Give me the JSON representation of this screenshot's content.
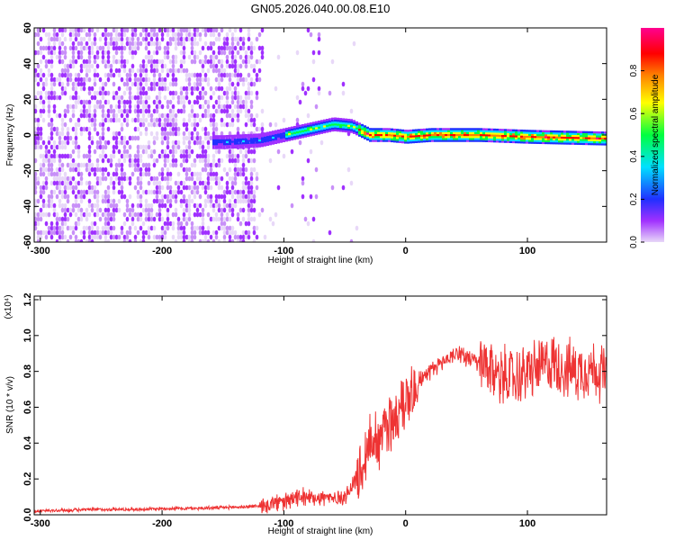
{
  "title": "GN05.2026.040.00.08.E10",
  "chart_data": [
    {
      "type": "heatmap",
      "xlabel": "Height of straight line (km)",
      "ylabel": "Frequency (Hz)",
      "xlim": [
        -305,
        165
      ],
      "ylim": [
        -60,
        60
      ],
      "xticks": [
        -300,
        -200,
        -100,
        0,
        100
      ],
      "yticks": [
        -60,
        -40,
        -20,
        0,
        20,
        40,
        60
      ],
      "colorbar": {
        "label": "Normalized spectral amplitude",
        "range": [
          0,
          1
        ],
        "ticks": [
          "0.0",
          "0.2",
          "0.4",
          "0.6",
          "0.8"
        ],
        "tick_values": [
          0,
          0.2,
          0.4,
          0.6,
          0.8
        ],
        "colors": [
          "#e8d8f8",
          "#a030ff",
          "#2030ff",
          "#00e0ff",
          "#00ff40",
          "#ffff00",
          "#ff8000",
          "#ff0000",
          "#ff0090"
        ]
      },
      "ridge": {
        "description_points_x": [
          -150,
          -120,
          -100,
          -80,
          -60,
          -45,
          -30,
          -15,
          0,
          20,
          60,
          100,
          165
        ],
        "description_points_y": [
          -4,
          -3,
          0,
          3,
          6,
          5,
          0,
          0,
          -1,
          0,
          0,
          -1,
          -2
        ]
      }
    },
    {
      "type": "line",
      "xlabel": "Height of straight line (km)",
      "ylabel": "SNR (10 * v/v)",
      "y_multiplier": "(x10⁴)",
      "xlim": [
        -305,
        165
      ],
      "ylim": [
        0,
        1.22
      ],
      "xticks": [
        -300,
        -200,
        -100,
        0,
        100
      ],
      "yticks": [
        "0.0",
        "0.2",
        "0.4",
        "0.6",
        "0.8",
        "1.0",
        "1.2"
      ],
      "ytick_values": [
        0,
        0.2,
        0.4,
        0.6,
        0.8,
        1.0,
        1.2
      ],
      "color": "#ee3333",
      "series": [
        {
          "x": [
            -305,
            -280,
            -250,
            -220,
            -200,
            -180,
            -150,
            -130,
            -120,
            -100,
            -90,
            -80,
            -70,
            -60,
            -50,
            -45,
            -40,
            -35,
            -30,
            -25,
            -20,
            -15,
            -10,
            -5,
            0,
            5,
            10,
            20,
            30,
            40,
            45,
            50,
            55,
            60,
            70,
            80,
            90,
            100,
            110,
            120,
            130,
            140,
            150,
            160,
            165
          ],
          "y": [
            0.02,
            0.025,
            0.03,
            0.03,
            0.035,
            0.035,
            0.04,
            0.045,
            0.05,
            0.07,
            0.09,
            0.1,
            0.1,
            0.09,
            0.1,
            0.15,
            0.2,
            0.3,
            0.4,
            0.42,
            0.45,
            0.5,
            0.52,
            0.6,
            0.65,
            0.7,
            0.75,
            0.8,
            0.85,
            0.9,
            0.9,
            0.88,
            0.86,
            0.84,
            0.8,
            0.78,
            0.76,
            0.8,
            0.82,
            0.85,
            0.82,
            0.8,
            0.82,
            0.8,
            0.78
          ]
        }
      ]
    }
  ]
}
